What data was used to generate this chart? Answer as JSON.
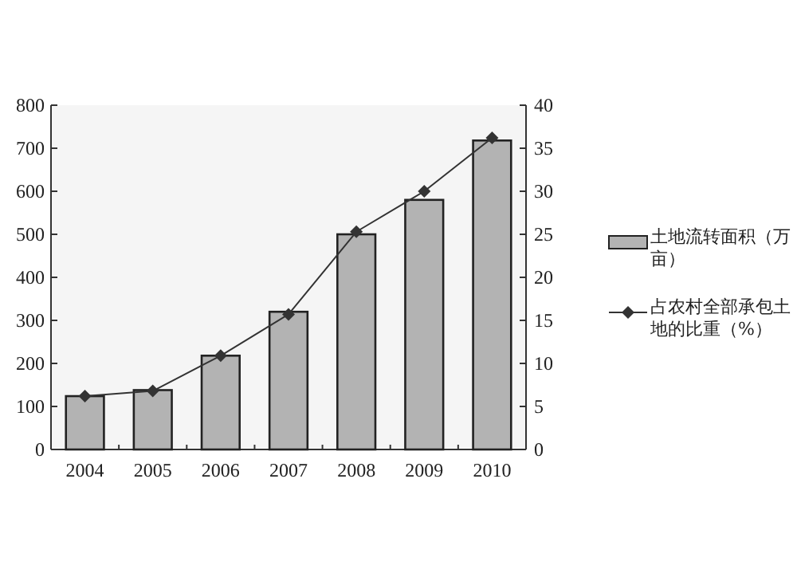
{
  "chart_data": {
    "type": "bar",
    "categories": [
      "2004",
      "2005",
      "2006",
      "2007",
      "2008",
      "2009",
      "2010"
    ],
    "series": [
      {
        "name": "土地流转面积（万亩）",
        "color": "#b3b3b3",
        "values": [
          124,
          138,
          218,
          320,
          500,
          580,
          718
        ]
      },
      {
        "name": "占农村全部承包土地的比重（%）",
        "type": "line",
        "axis": "y2",
        "color": "#333333",
        "marker": "diamond",
        "values": [
          6.2,
          6.8,
          10.9,
          15.7,
          25.3,
          30,
          36.2
        ]
      }
    ],
    "ylim": [
      0,
      800
    ],
    "yticks": [
      0,
      100,
      200,
      300,
      400,
      500,
      600,
      700,
      800
    ],
    "y2lim": [
      0,
      40
    ],
    "y2ticks": [
      0,
      5,
      10,
      15,
      20,
      25,
      30,
      35,
      40
    ],
    "legend": "right"
  }
}
